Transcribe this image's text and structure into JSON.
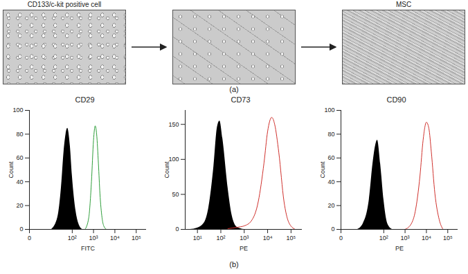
{
  "panel_a": {
    "label": "(a)",
    "image_labels": [
      "CD133/c-kit positive cell",
      null,
      "MSC"
    ]
  },
  "panel_b": {
    "label": "(b)"
  },
  "chart_data": [
    {
      "type": "line",
      "title": "CD29",
      "x_label": "FITC",
      "y_label": "Count",
      "log": "x",
      "xlim": [
        0,
        300000
      ],
      "xticks": [
        0,
        {
          "value": 100,
          "label": "10²"
        },
        {
          "value": 1000,
          "label": "10³"
        },
        {
          "value": 10000,
          "label": "10⁴"
        },
        {
          "value": 100000,
          "label": "10⁵"
        }
      ],
      "ylim": [
        0,
        100
      ],
      "yticks": [
        0,
        20,
        40,
        60,
        80,
        100
      ],
      "series": [
        {
          "type": "area",
          "color": "#000000",
          "x": [
            10,
            20,
            30,
            40,
            50,
            60,
            80,
            100,
            150,
            200,
            300
          ],
          "values": [
            0,
            10,
            35,
            65,
            80,
            85,
            70,
            45,
            15,
            5,
            0
          ]
        },
        {
          "type": "line",
          "color": "#2e9e3a",
          "x": [
            400,
            600,
            800,
            1000,
            1200,
            1400,
            1700,
            2000,
            2500,
            3000,
            4000
          ],
          "values": [
            0,
            10,
            40,
            75,
            87,
            80,
            55,
            30,
            10,
            3,
            0
          ]
        }
      ]
    },
    {
      "type": "line",
      "title": "CD73",
      "x_label": "PE",
      "y_label": "Count",
      "log": "x",
      "xlim": [
        3,
        300000
      ],
      "xticks": [
        {
          "value": 10,
          "label": "10¹"
        },
        {
          "value": 100,
          "label": "10²"
        },
        {
          "value": 1000,
          "label": "10³"
        },
        {
          "value": 10000,
          "label": "10⁴"
        },
        {
          "value": 100000,
          "label": "10⁵"
        }
      ],
      "ylim": [
        0,
        170
      ],
      "yticks": [
        0,
        50,
        100,
        150
      ],
      "series": [
        {
          "type": "area",
          "color": "#000000",
          "x": [
            5,
            10,
            20,
            30,
            50,
            70,
            90,
            120,
            200,
            300,
            500,
            1000
          ],
          "values": [
            0,
            2,
            10,
            30,
            90,
            145,
            155,
            130,
            60,
            20,
            3,
            0
          ]
        },
        {
          "type": "line",
          "color": "#d0312d",
          "x": [
            200,
            500,
            1000,
            2000,
            4000,
            7000,
            10000,
            15000,
            20000,
            30000,
            50000,
            80000,
            150000
          ],
          "values": [
            1,
            3,
            5,
            12,
            40,
            95,
            140,
            160,
            150,
            110,
            40,
            10,
            0
          ]
        }
      ]
    },
    {
      "type": "line",
      "title": "CD90",
      "x_label": "PE",
      "y_label": "Count",
      "log": "x",
      "xlim": [
        0,
        300000
      ],
      "xticks": [
        0,
        {
          "value": 100,
          "label": "10²"
        },
        {
          "value": 1000,
          "label": "10³"
        },
        {
          "value": 10000,
          "label": "10⁴"
        },
        {
          "value": 100000,
          "label": "10⁵"
        }
      ],
      "ylim": [
        0,
        100
      ],
      "yticks": [
        0,
        20,
        40,
        60,
        80,
        100
      ],
      "series": [
        {
          "type": "area",
          "color": "#000000",
          "x": [
            5,
            10,
            20,
            30,
            40,
            50,
            70,
            100,
            150,
            250
          ],
          "values": [
            0,
            5,
            25,
            55,
            70,
            75,
            55,
            25,
            5,
            0
          ]
        },
        {
          "type": "line",
          "color": "#d0312d",
          "x": [
            1000,
            2000,
            3000,
            5000,
            7000,
            10000,
            13000,
            17000,
            25000,
            40000,
            60000
          ],
          "values": [
            0,
            5,
            15,
            45,
            75,
            90,
            85,
            65,
            30,
            8,
            0
          ]
        }
      ]
    }
  ]
}
